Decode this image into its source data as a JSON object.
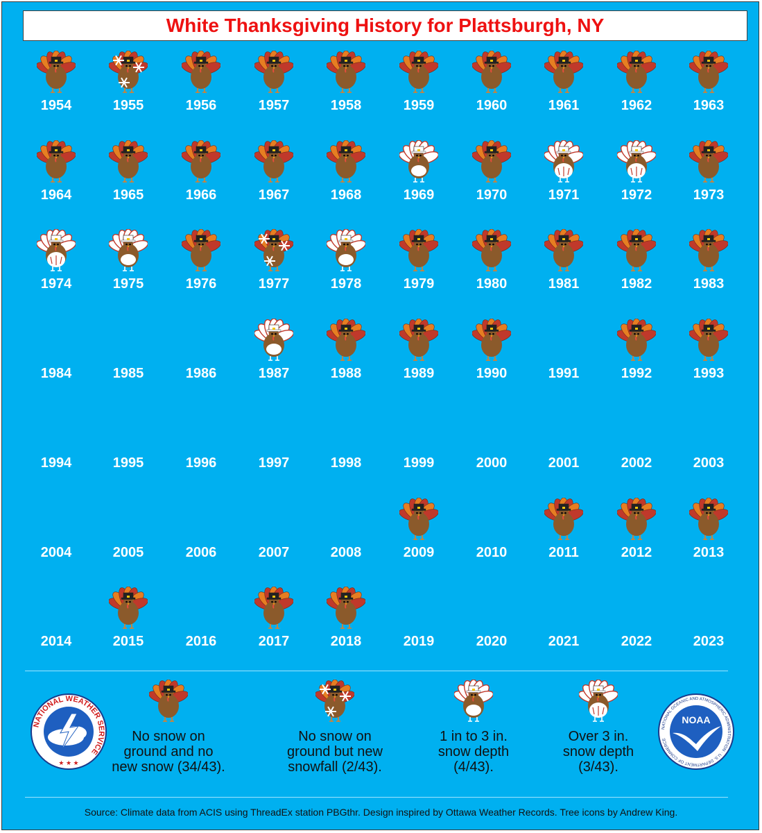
{
  "title": "White Thanksgiving History for Plattsburgh, NY",
  "colors": {
    "background": "#00b0f0",
    "title_text": "#ee1111",
    "turkey_body": "#8b5a2b",
    "turkey_feather_red": "#c0392b",
    "turkey_feather_orange": "#e67e22",
    "snow": "#ffffff"
  },
  "legend_categories": {
    "none": "No snow on ground and no new snow (34/43).",
    "new": "No snow on ground but new snowfall (2/43).",
    "light": "1 in to 3 in. snow depth (4/43).",
    "heavy": "Over 3 in. snow depth (3/43)."
  },
  "years": [
    {
      "year": "1954",
      "status": "none"
    },
    {
      "year": "1955",
      "status": "new"
    },
    {
      "year": "1956",
      "status": "none"
    },
    {
      "year": "1957",
      "status": "none"
    },
    {
      "year": "1958",
      "status": "none"
    },
    {
      "year": "1959",
      "status": "none"
    },
    {
      "year": "1960",
      "status": "none"
    },
    {
      "year": "1961",
      "status": "none"
    },
    {
      "year": "1962",
      "status": "none"
    },
    {
      "year": "1963",
      "status": "none"
    },
    {
      "year": "1964",
      "status": "none"
    },
    {
      "year": "1965",
      "status": "none"
    },
    {
      "year": "1966",
      "status": "none"
    },
    {
      "year": "1967",
      "status": "none"
    },
    {
      "year": "1968",
      "status": "none"
    },
    {
      "year": "1969",
      "status": "light"
    },
    {
      "year": "1970",
      "status": "none"
    },
    {
      "year": "1971",
      "status": "heavy"
    },
    {
      "year": "1972",
      "status": "heavy"
    },
    {
      "year": "1973",
      "status": "none"
    },
    {
      "year": "1974",
      "status": "heavy"
    },
    {
      "year": "1975",
      "status": "light"
    },
    {
      "year": "1976",
      "status": "none"
    },
    {
      "year": "1977",
      "status": "new"
    },
    {
      "year": "1978",
      "status": "light"
    },
    {
      "year": "1979",
      "status": "none"
    },
    {
      "year": "1980",
      "status": "none"
    },
    {
      "year": "1981",
      "status": "none"
    },
    {
      "year": "1982",
      "status": "none"
    },
    {
      "year": "1983",
      "status": "none"
    },
    {
      "year": "1984",
      "status": ""
    },
    {
      "year": "1985",
      "status": ""
    },
    {
      "year": "1986",
      "status": ""
    },
    {
      "year": "1987",
      "status": "light"
    },
    {
      "year": "1988",
      "status": "none"
    },
    {
      "year": "1989",
      "status": "none"
    },
    {
      "year": "1990",
      "status": "none"
    },
    {
      "year": "1991",
      "status": ""
    },
    {
      "year": "1992",
      "status": "none"
    },
    {
      "year": "1993",
      "status": "none"
    },
    {
      "year": "1994",
      "status": ""
    },
    {
      "year": "1995",
      "status": ""
    },
    {
      "year": "1996",
      "status": ""
    },
    {
      "year": "1997",
      "status": ""
    },
    {
      "year": "1998",
      "status": ""
    },
    {
      "year": "1999",
      "status": ""
    },
    {
      "year": "2000",
      "status": ""
    },
    {
      "year": "2001",
      "status": ""
    },
    {
      "year": "2002",
      "status": ""
    },
    {
      "year": "2003",
      "status": ""
    },
    {
      "year": "2004",
      "status": ""
    },
    {
      "year": "2005",
      "status": ""
    },
    {
      "year": "2006",
      "status": ""
    },
    {
      "year": "2007",
      "status": ""
    },
    {
      "year": "2008",
      "status": ""
    },
    {
      "year": "2009",
      "status": "none"
    },
    {
      "year": "2010",
      "status": ""
    },
    {
      "year": "2011",
      "status": "none"
    },
    {
      "year": "2012",
      "status": "none"
    },
    {
      "year": "2013",
      "status": "none"
    },
    {
      "year": "2014",
      "status": ""
    },
    {
      "year": "2015",
      "status": "none"
    },
    {
      "year": "2016",
      "status": ""
    },
    {
      "year": "2017",
      "status": "none"
    },
    {
      "year": "2018",
      "status": "none"
    },
    {
      "year": "2019",
      "status": ""
    },
    {
      "year": "2020",
      "status": ""
    },
    {
      "year": "2021",
      "status": ""
    },
    {
      "year": "2022",
      "status": ""
    },
    {
      "year": "2023",
      "status": ""
    }
  ],
  "legend": [
    {
      "category": "none",
      "lines": [
        "No snow on",
        "ground and no",
        "new snow (34/43)."
      ]
    },
    {
      "category": "new",
      "lines": [
        "No snow on",
        "ground but new",
        "snowfall (2/43)."
      ]
    },
    {
      "category": "light",
      "lines": [
        "1 in to 3 in.",
        "snow depth",
        "(4/43)."
      ]
    },
    {
      "category": "heavy",
      "lines": [
        "Over 3 in.",
        "snow depth",
        "(3/43)."
      ]
    }
  ],
  "logos": {
    "nws_text": "NATIONAL WEATHER SERVICE",
    "noaa_label": "NOAA",
    "noaa_ring_text": "NATIONAL OCEANIC AND ATMOSPHERIC ADMINISTRATION · U.S. DEPARTMENT OF COMMERCE"
  },
  "source": "Source: Climate data from ACIS using ThreadEx station PBGthr. Design inspired by Ottawa Weather Records. Tree icons by Andrew King."
}
